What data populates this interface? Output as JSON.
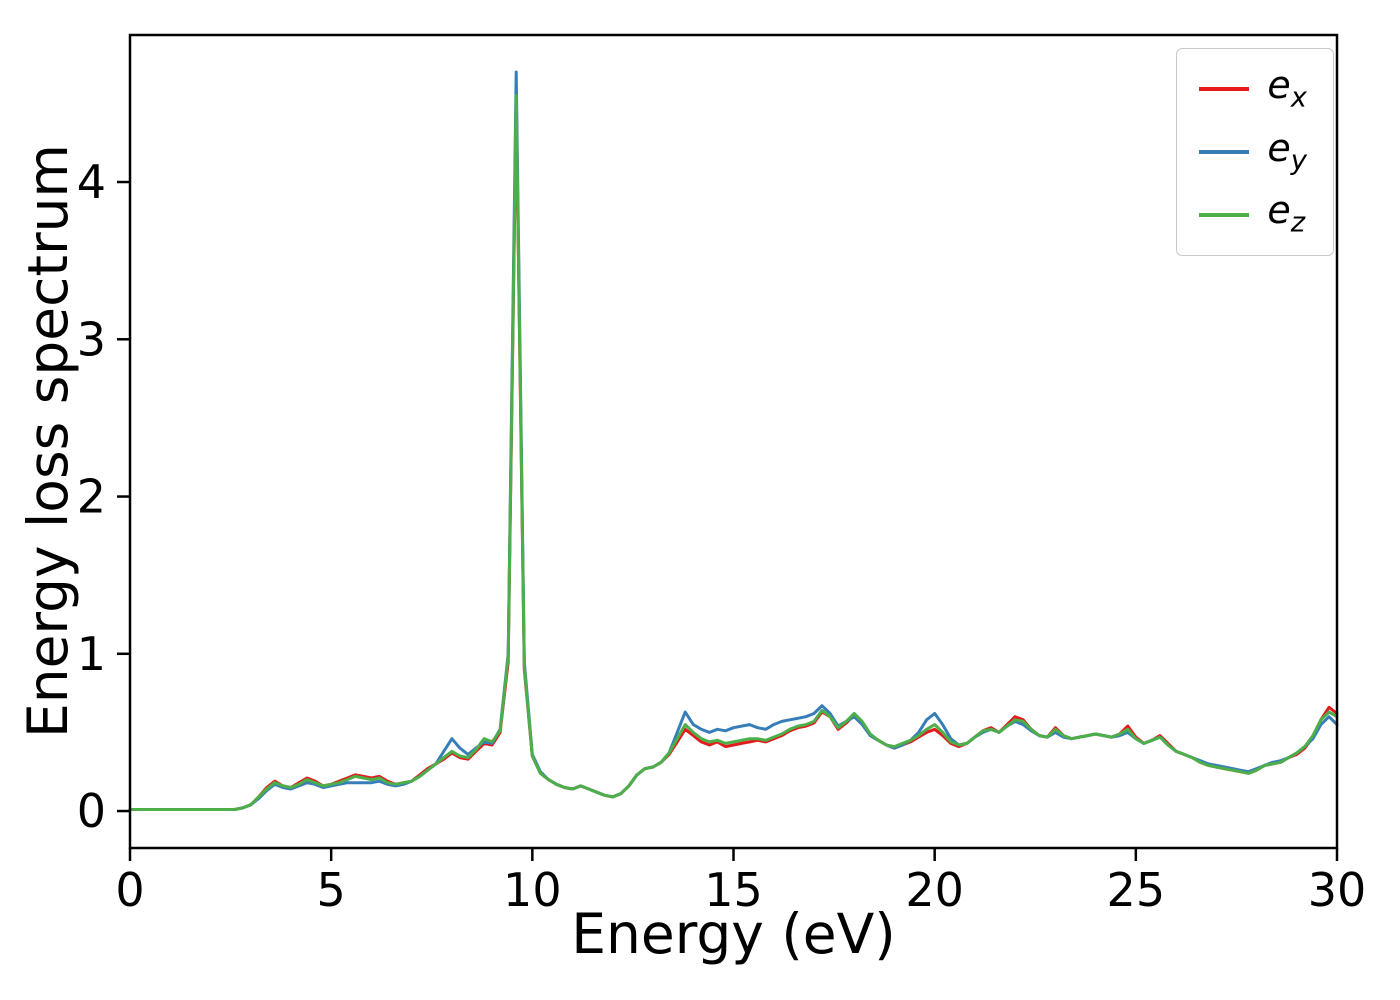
{
  "figure": {
    "background": "#ffffff"
  },
  "chart_data": {
    "type": "line",
    "title": "",
    "xlabel": "Energy (eV)",
    "ylabel": "Energy loss spectrum",
    "xlim": [
      0,
      30
    ],
    "ylim": [
      -0.235,
      4.935
    ],
    "xticks": [
      0,
      5,
      10,
      15,
      20,
      25,
      30
    ],
    "yticks": [
      0,
      1,
      2,
      3,
      4
    ],
    "grid": false,
    "legend": {
      "position": "upper right"
    },
    "x": [
      0,
      0.2,
      0.4,
      0.6,
      0.8,
      1,
      1.2,
      1.4,
      1.6,
      1.8,
      2,
      2.2,
      2.4,
      2.6,
      2.8,
      3,
      3.2,
      3.4,
      3.6,
      3.8,
      4,
      4.2,
      4.4,
      4.6,
      4.8,
      5,
      5.2,
      5.4,
      5.6,
      5.8,
      6,
      6.2,
      6.4,
      6.6,
      6.8,
      7,
      7.2,
      7.4,
      7.6,
      7.8,
      8,
      8.2,
      8.4,
      8.6,
      8.8,
      9,
      9.2,
      9.4,
      9.6,
      9.8,
      10,
      10.2,
      10.4,
      10.6,
      10.8,
      11,
      11.2,
      11.4,
      11.6,
      11.8,
      12,
      12.2,
      12.4,
      12.6,
      12.8,
      13,
      13.2,
      13.4,
      13.6,
      13.8,
      14,
      14.2,
      14.4,
      14.6,
      14.8,
      15,
      15.2,
      15.4,
      15.6,
      15.8,
      16,
      16.2,
      16.4,
      16.6,
      16.8,
      17,
      17.2,
      17.4,
      17.6,
      17.8,
      18,
      18.2,
      18.4,
      18.6,
      18.8,
      19,
      19.2,
      19.4,
      19.6,
      19.8,
      20,
      20.2,
      20.4,
      20.6,
      20.8,
      21,
      21.2,
      21.4,
      21.6,
      21.8,
      22,
      22.2,
      22.4,
      22.6,
      22.8,
      23,
      23.2,
      23.4,
      23.6,
      23.8,
      24,
      24.2,
      24.4,
      24.6,
      24.8,
      25,
      25.2,
      25.4,
      25.6,
      25.8,
      26,
      26.2,
      26.4,
      26.6,
      26.8,
      27,
      27.2,
      27.4,
      27.6,
      27.8,
      28,
      28.2,
      28.4,
      28.6,
      28.8,
      29,
      29.2,
      29.4,
      29.6,
      29.8,
      30
    ],
    "series": [
      {
        "name": "ex",
        "label_main": "e",
        "label_sub": "x",
        "color": "#e41a1c",
        "values": [
          0.01,
          0.01,
          0.01,
          0.01,
          0.01,
          0.01,
          0.01,
          0.01,
          0.01,
          0.01,
          0.01,
          0.01,
          0.01,
          0.01,
          0.02,
          0.04,
          0.09,
          0.15,
          0.19,
          0.16,
          0.15,
          0.18,
          0.21,
          0.19,
          0.16,
          0.17,
          0.19,
          0.21,
          0.23,
          0.22,
          0.21,
          0.22,
          0.19,
          0.17,
          0.18,
          0.19,
          0.23,
          0.27,
          0.3,
          0.33,
          0.37,
          0.34,
          0.33,
          0.38,
          0.43,
          0.42,
          0.5,
          0.95,
          4.5,
          0.9,
          0.35,
          0.24,
          0.2,
          0.17,
          0.15,
          0.14,
          0.16,
          0.14,
          0.12,
          0.1,
          0.09,
          0.11,
          0.16,
          0.23,
          0.27,
          0.28,
          0.31,
          0.36,
          0.44,
          0.52,
          0.48,
          0.44,
          0.42,
          0.44,
          0.41,
          0.42,
          0.43,
          0.44,
          0.45,
          0.44,
          0.46,
          0.48,
          0.51,
          0.53,
          0.54,
          0.56,
          0.63,
          0.6,
          0.52,
          0.56,
          0.61,
          0.56,
          0.48,
          0.45,
          0.42,
          0.4,
          0.42,
          0.44,
          0.47,
          0.5,
          0.52,
          0.48,
          0.43,
          0.41,
          0.43,
          0.47,
          0.51,
          0.53,
          0.5,
          0.55,
          0.6,
          0.58,
          0.52,
          0.48,
          0.47,
          0.53,
          0.48,
          0.46,
          0.47,
          0.48,
          0.49,
          0.48,
          0.47,
          0.49,
          0.54,
          0.47,
          0.43,
          0.45,
          0.48,
          0.43,
          0.38,
          0.36,
          0.34,
          0.31,
          0.29,
          0.28,
          0.27,
          0.26,
          0.25,
          0.24,
          0.26,
          0.29,
          0.3,
          0.31,
          0.34,
          0.36,
          0.4,
          0.47,
          0.58,
          0.66,
          0.62
        ]
      },
      {
        "name": "ey",
        "label_main": "e",
        "label_sub": "y",
        "color": "#377eb8",
        "values": [
          0.01,
          0.01,
          0.01,
          0.01,
          0.01,
          0.01,
          0.01,
          0.01,
          0.01,
          0.01,
          0.01,
          0.01,
          0.01,
          0.01,
          0.02,
          0.04,
          0.08,
          0.13,
          0.17,
          0.15,
          0.14,
          0.16,
          0.18,
          0.17,
          0.15,
          0.16,
          0.17,
          0.18,
          0.18,
          0.18,
          0.18,
          0.19,
          0.17,
          0.16,
          0.17,
          0.19,
          0.22,
          0.26,
          0.3,
          0.38,
          0.46,
          0.4,
          0.36,
          0.4,
          0.44,
          0.43,
          0.52,
          1.0,
          4.7,
          0.95,
          0.36,
          0.25,
          0.2,
          0.17,
          0.15,
          0.14,
          0.16,
          0.14,
          0.12,
          0.1,
          0.09,
          0.11,
          0.16,
          0.23,
          0.27,
          0.28,
          0.31,
          0.37,
          0.5,
          0.63,
          0.55,
          0.52,
          0.5,
          0.52,
          0.51,
          0.53,
          0.54,
          0.55,
          0.53,
          0.52,
          0.55,
          0.57,
          0.58,
          0.59,
          0.6,
          0.62,
          0.67,
          0.62,
          0.54,
          0.57,
          0.6,
          0.55,
          0.48,
          0.45,
          0.42,
          0.4,
          0.42,
          0.45,
          0.5,
          0.58,
          0.62,
          0.55,
          0.46,
          0.42,
          0.43,
          0.47,
          0.5,
          0.52,
          0.5,
          0.54,
          0.57,
          0.55,
          0.51,
          0.48,
          0.47,
          0.5,
          0.47,
          0.46,
          0.47,
          0.48,
          0.49,
          0.48,
          0.47,
          0.48,
          0.5,
          0.46,
          0.43,
          0.45,
          0.47,
          0.42,
          0.38,
          0.36,
          0.34,
          0.32,
          0.3,
          0.29,
          0.28,
          0.27,
          0.26,
          0.25,
          0.27,
          0.29,
          0.31,
          0.32,
          0.34,
          0.37,
          0.41,
          0.46,
          0.55,
          0.6,
          0.55
        ]
      },
      {
        "name": "ez",
        "label_main": "e",
        "label_sub": "z",
        "color": "#4daf4a",
        "values": [
          0.01,
          0.01,
          0.01,
          0.01,
          0.01,
          0.01,
          0.01,
          0.01,
          0.01,
          0.01,
          0.01,
          0.01,
          0.01,
          0.01,
          0.02,
          0.04,
          0.09,
          0.14,
          0.18,
          0.16,
          0.15,
          0.17,
          0.2,
          0.18,
          0.16,
          0.17,
          0.18,
          0.2,
          0.22,
          0.21,
          0.2,
          0.21,
          0.18,
          0.17,
          0.18,
          0.19,
          0.22,
          0.26,
          0.3,
          0.34,
          0.38,
          0.35,
          0.34,
          0.39,
          0.46,
          0.44,
          0.51,
          0.98,
          4.55,
          0.92,
          0.35,
          0.24,
          0.2,
          0.17,
          0.15,
          0.14,
          0.16,
          0.14,
          0.12,
          0.1,
          0.09,
          0.11,
          0.16,
          0.23,
          0.27,
          0.28,
          0.31,
          0.37,
          0.46,
          0.55,
          0.5,
          0.46,
          0.44,
          0.45,
          0.43,
          0.44,
          0.45,
          0.46,
          0.46,
          0.45,
          0.47,
          0.49,
          0.52,
          0.54,
          0.55,
          0.57,
          0.64,
          0.6,
          0.53,
          0.57,
          0.62,
          0.57,
          0.49,
          0.45,
          0.42,
          0.41,
          0.43,
          0.45,
          0.48,
          0.52,
          0.55,
          0.5,
          0.44,
          0.42,
          0.43,
          0.47,
          0.51,
          0.52,
          0.5,
          0.54,
          0.58,
          0.57,
          0.52,
          0.48,
          0.47,
          0.52,
          0.48,
          0.46,
          0.47,
          0.48,
          0.49,
          0.48,
          0.47,
          0.49,
          0.52,
          0.46,
          0.43,
          0.45,
          0.47,
          0.42,
          0.38,
          0.36,
          0.34,
          0.31,
          0.29,
          0.28,
          0.27,
          0.26,
          0.25,
          0.24,
          0.26,
          0.29,
          0.3,
          0.31,
          0.34,
          0.37,
          0.41,
          0.48,
          0.58,
          0.63,
          0.6
        ]
      }
    ]
  }
}
